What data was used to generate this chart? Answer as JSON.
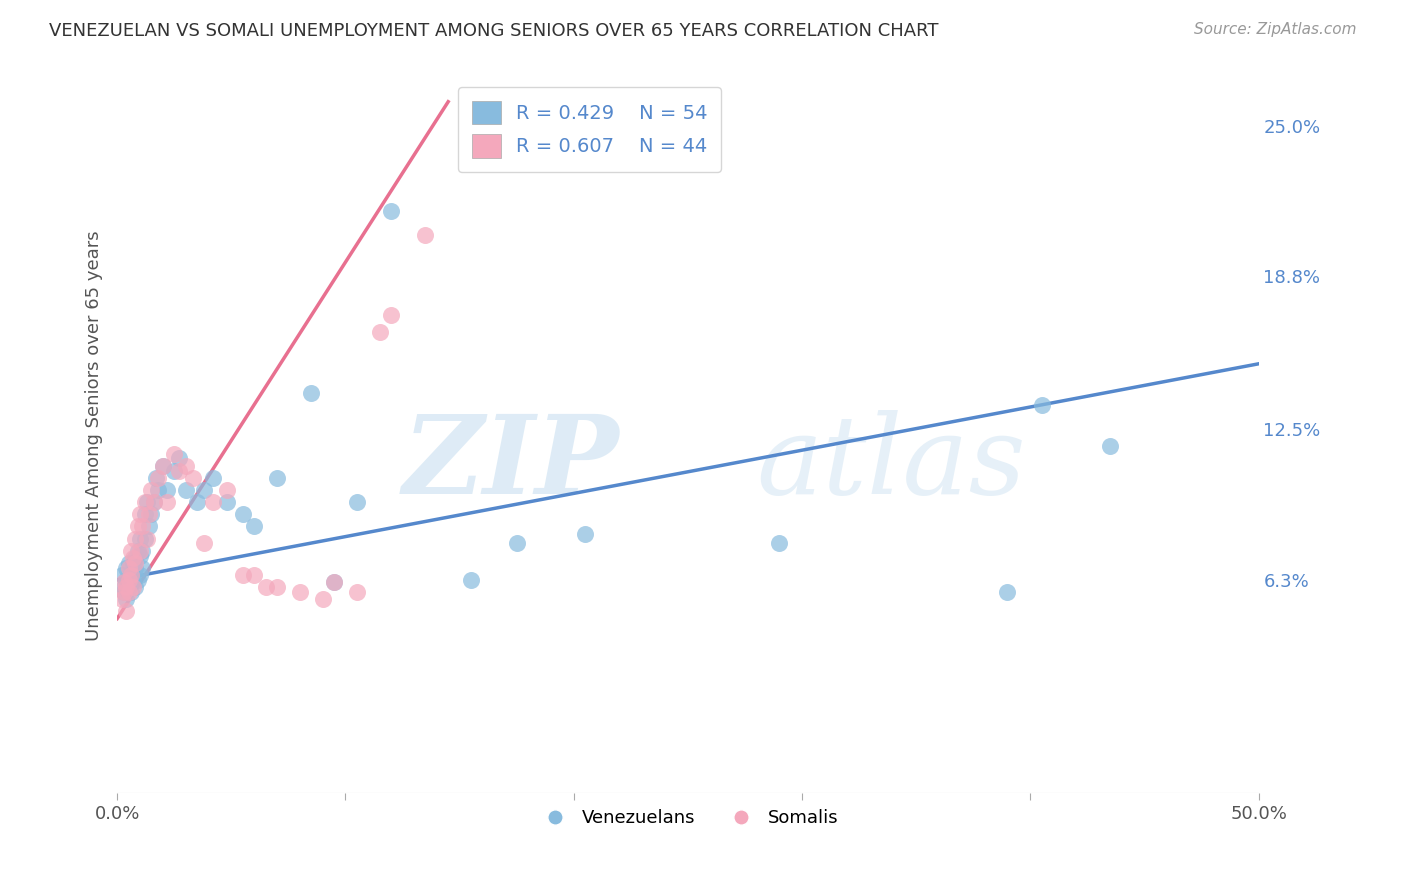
{
  "title": "VENEZUELAN VS SOMALI UNEMPLOYMENT AMONG SENIORS OVER 65 YEARS CORRELATION CHART",
  "source": "Source: ZipAtlas.com",
  "ylabel": "Unemployment Among Seniors over 65 years",
  "x_min": 0.0,
  "x_max": 0.5,
  "y_min": -0.025,
  "y_max": 0.27,
  "x_ticks": [
    0.0,
    0.1,
    0.2,
    0.3,
    0.4,
    0.5
  ],
  "x_tick_labels": [
    "0.0%",
    "",
    "",
    "",
    "",
    "50.0%"
  ],
  "y_tick_labels_right": [
    "6.3%",
    "12.5%",
    "18.8%",
    "25.0%"
  ],
  "y_tick_vals_right": [
    0.063,
    0.125,
    0.188,
    0.25
  ],
  "venezuelan_color": "#88bbde",
  "somali_color": "#f4a8bc",
  "venezuelan_line_color": "#5588cc",
  "somali_line_color": "#e87090",
  "legend_R_venezuelan": "R = 0.429",
  "legend_N_venezuelan": "N = 54",
  "legend_R_somali": "R = 0.607",
  "legend_N_somali": "N = 44",
  "background_color": "#ffffff",
  "grid_color": "#cccccc",
  "ven_line_x0": 0.0,
  "ven_line_y0": 0.063,
  "ven_line_x1": 0.5,
  "ven_line_y1": 0.152,
  "som_line_x0": 0.0,
  "som_line_y0": 0.047,
  "som_line_x1": 0.145,
  "som_line_y1": 0.26,
  "venezuelan_x": [
    0.002,
    0.003,
    0.003,
    0.004,
    0.004,
    0.004,
    0.005,
    0.005,
    0.005,
    0.006,
    0.006,
    0.007,
    0.007,
    0.008,
    0.008,
    0.008,
    0.009,
    0.009,
    0.01,
    0.01,
    0.01,
    0.011,
    0.011,
    0.012,
    0.012,
    0.013,
    0.014,
    0.015,
    0.016,
    0.017,
    0.018,
    0.02,
    0.022,
    0.025,
    0.027,
    0.03,
    0.035,
    0.038,
    0.042,
    0.048,
    0.055,
    0.06,
    0.07,
    0.085,
    0.095,
    0.105,
    0.12,
    0.155,
    0.175,
    0.205,
    0.29,
    0.39,
    0.405,
    0.435
  ],
  "venezuelan_y": [
    0.065,
    0.06,
    0.058,
    0.063,
    0.055,
    0.068,
    0.06,
    0.063,
    0.07,
    0.058,
    0.065,
    0.07,
    0.063,
    0.068,
    0.072,
    0.06,
    0.075,
    0.063,
    0.08,
    0.073,
    0.065,
    0.075,
    0.068,
    0.09,
    0.08,
    0.095,
    0.085,
    0.09,
    0.095,
    0.105,
    0.1,
    0.11,
    0.1,
    0.108,
    0.113,
    0.1,
    0.095,
    0.1,
    0.105,
    0.095,
    0.09,
    0.085,
    0.105,
    0.14,
    0.062,
    0.095,
    0.215,
    0.063,
    0.078,
    0.082,
    0.078,
    0.058,
    0.135,
    0.118
  ],
  "somali_x": [
    0.002,
    0.003,
    0.003,
    0.004,
    0.004,
    0.005,
    0.005,
    0.005,
    0.006,
    0.006,
    0.007,
    0.007,
    0.008,
    0.008,
    0.009,
    0.01,
    0.01,
    0.011,
    0.012,
    0.013,
    0.014,
    0.015,
    0.016,
    0.018,
    0.02,
    0.022,
    0.025,
    0.027,
    0.03,
    0.033,
    0.038,
    0.042,
    0.048,
    0.055,
    0.06,
    0.065,
    0.07,
    0.08,
    0.09,
    0.095,
    0.105,
    0.115,
    0.12,
    0.135
  ],
  "somali_y": [
    0.055,
    0.058,
    0.062,
    0.05,
    0.06,
    0.063,
    0.068,
    0.058,
    0.075,
    0.065,
    0.072,
    0.06,
    0.08,
    0.07,
    0.085,
    0.09,
    0.075,
    0.085,
    0.095,
    0.08,
    0.09,
    0.1,
    0.095,
    0.105,
    0.11,
    0.095,
    0.115,
    0.108,
    0.11,
    0.105,
    0.078,
    0.095,
    0.1,
    0.065,
    0.065,
    0.06,
    0.06,
    0.058,
    0.055,
    0.062,
    0.058,
    0.165,
    0.172,
    0.205
  ]
}
